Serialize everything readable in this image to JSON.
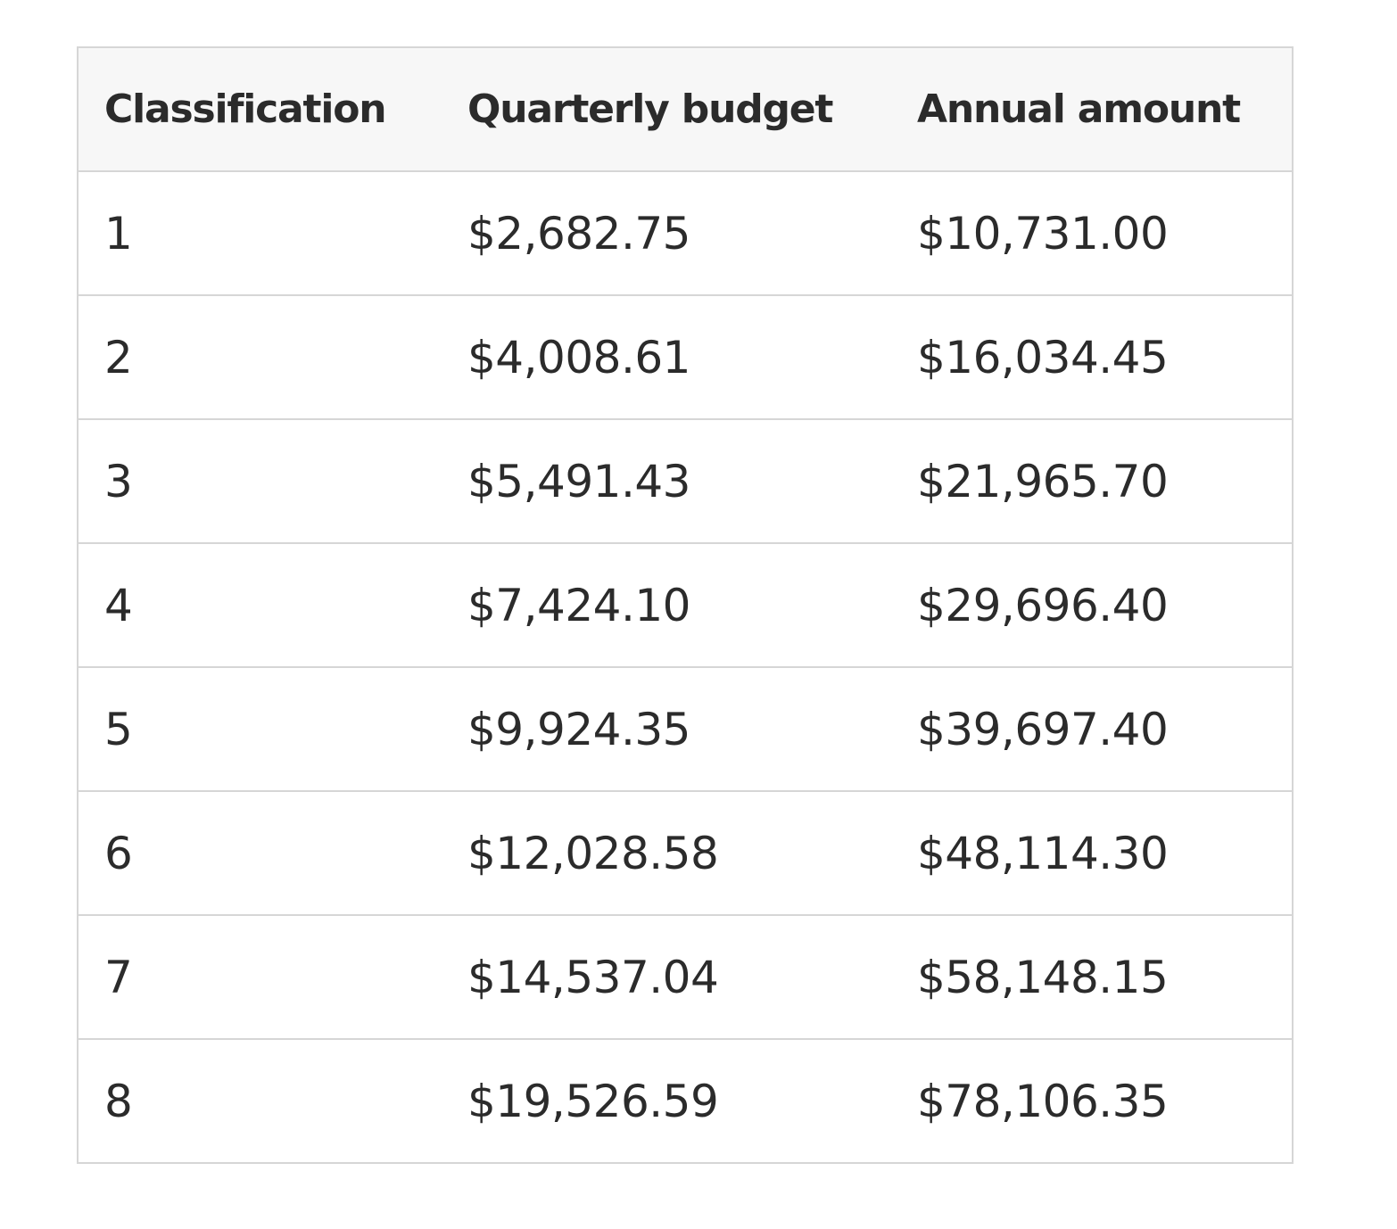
{
  "table": {
    "headers": [
      "Classification",
      "Quarterly budget",
      "Annual amount"
    ],
    "rows": [
      [
        "1",
        "$2,682.75",
        "$10,731.00"
      ],
      [
        "2",
        "$4,008.61",
        "$16,034.45"
      ],
      [
        "3",
        "$5,491.43",
        "$21,965.70"
      ],
      [
        "4",
        "$7,424.10",
        "$29,696.40"
      ],
      [
        "5",
        "$9,924.35",
        "$39,697.40"
      ],
      [
        "6",
        "$12,028.58",
        "$48,114.30"
      ],
      [
        "7",
        "$14,537.04",
        "$58,148.15"
      ],
      [
        "8",
        "$19,526.59",
        "$78,106.35"
      ]
    ]
  }
}
